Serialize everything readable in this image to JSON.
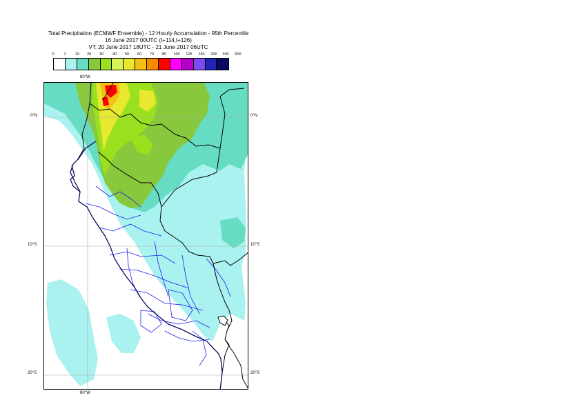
{
  "title": {
    "line1": "Total Precipitation (ECMWF Ensemble) - 12 Hourly Accumulation - 95th Percentile",
    "line2": "16 June 2017 00UTC (t+114,t+126)",
    "line3": "VT: 20 June 2017 18UTC - 21 June 2017 06UTC"
  },
  "legend": {
    "ticks": [
      "0",
      "1",
      "10",
      "20",
      "30",
      "40",
      "50",
      "60",
      "70",
      "80",
      "100",
      "125",
      "150",
      "200",
      "300",
      "500"
    ],
    "colors": [
      "#ffffff",
      "#aaf2ef",
      "#66dcc3",
      "#88c83c",
      "#9ae01e",
      "#d8f25a",
      "#e8e830",
      "#f5c016",
      "#f88a00",
      "#ff0000",
      "#ff00ff",
      "#b400c8",
      "#7a4cf0",
      "#2424b4",
      "#0a0a64"
    ]
  },
  "map": {
    "lon_labels": {
      "top": "80°W",
      "bottom": "80°W"
    },
    "lat_labels": {
      "0n_left": "0°N",
      "0n_right": "0°N",
      "10s_left": "10°S",
      "10s_right": "10°S",
      "20s_left": "20°S",
      "20s_right": "20°S"
    },
    "colors": {
      "light_cyan": "#aaf2ef",
      "teal": "#66dcc3",
      "green": "#88c83c",
      "yellow_green": "#9ae01e",
      "yellow": "#e8e830",
      "orange": "#f5c016",
      "red": "#ff0000",
      "country_border": "#000000",
      "region_border": "#1e1ef0",
      "coastline": "#0a0a64",
      "graticule": "#aaaaaa"
    }
  }
}
